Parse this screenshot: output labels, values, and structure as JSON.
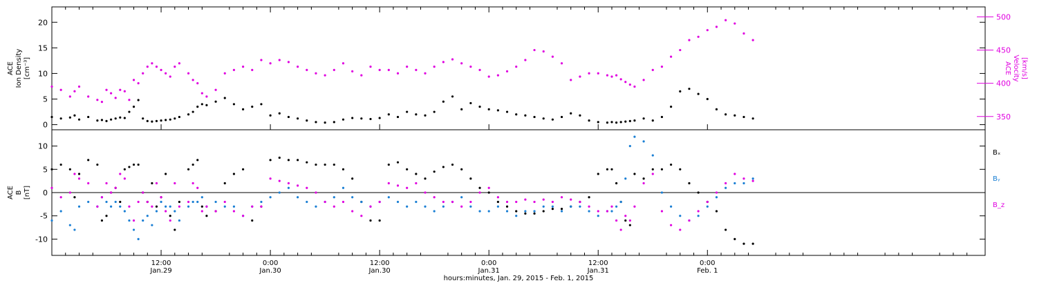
{
  "chart_data": [
    {
      "type": "scatter",
      "ylabel_lines": [
        "ACE",
        "Ion Density",
        "[cm⁻³]"
      ],
      "y2label_lines": [
        "ACE",
        "Velocity",
        "[km/s]"
      ],
      "ylim": [
        -1,
        23
      ],
      "y_ticks": [
        0,
        5,
        10,
        15,
        20
      ],
      "y2lim": [
        330,
        515
      ],
      "y2_ticks": [
        350,
        400,
        450,
        500
      ],
      "series": [
        {
          "key": "density",
          "axis": "left",
          "color": "#000000",
          "x": [
            0,
            2,
            4,
            5,
            6,
            8,
            10,
            11,
            12,
            13,
            14,
            15,
            16,
            17,
            18,
            19,
            20,
            21,
            22,
            23,
            24,
            25,
            26,
            27,
            28,
            30,
            31,
            32,
            33,
            34,
            36,
            38,
            40,
            42,
            44,
            46,
            48,
            50,
            52,
            54,
            56,
            58,
            60,
            62,
            64,
            66,
            68,
            70,
            72,
            74,
            76,
            78,
            80,
            82,
            84,
            86,
            88,
            90,
            92,
            94,
            96,
            98,
            100,
            102,
            104,
            106,
            108,
            110,
            112,
            114,
            116,
            118,
            120,
            122,
            123,
            124,
            125,
            126,
            127,
            128,
            130,
            132,
            134,
            136,
            138,
            140,
            142,
            144,
            146,
            148,
            150,
            152,
            154
          ],
          "y": [
            1.5,
            1.2,
            1.4,
            1.8,
            1,
            1.5,
            0.8,
            0.9,
            0.7,
            1,
            1.2,
            1.4,
            1.3,
            2.5,
            3.5,
            4.8,
            1.2,
            0.7,
            0.6,
            0.7,
            0.8,
            0.9,
            1,
            1.2,
            1.5,
            2,
            2.5,
            3.5,
            4,
            3.8,
            4.5,
            5.2,
            4,
            3,
            3.5,
            4,
            1.8,
            2.2,
            1.5,
            1.2,
            0.8,
            0.5,
            0.4,
            0.5,
            1,
            1.3,
            1.2,
            1.1,
            1.3,
            2,
            1.5,
            2.5,
            2,
            1.8,
            2.5,
            4.5,
            5.5,
            3,
            4.2,
            3.5,
            3,
            2.8,
            2.5,
            2,
            1.8,
            1.5,
            1.2,
            1,
            1.5,
            2.2,
            1.8,
            0.8,
            0.5,
            0.4,
            0.5,
            0.4,
            0.5,
            0.6,
            0.7,
            0.8,
            1.2,
            0.8,
            1.5,
            3.5,
            6.5,
            7,
            6,
            5,
            3,
            2,
            1.8,
            1.5,
            1.2
          ]
        },
        {
          "key": "velocity",
          "axis": "right",
          "color": "#e000e0",
          "x": [
            0,
            2,
            4,
            5,
            6,
            8,
            10,
            11,
            12,
            13,
            14,
            15,
            16,
            17,
            18,
            19,
            20,
            21,
            22,
            23,
            24,
            25,
            26,
            27,
            28,
            30,
            31,
            32,
            33,
            34,
            36,
            38,
            40,
            42,
            44,
            46,
            48,
            50,
            52,
            54,
            56,
            58,
            60,
            62,
            64,
            66,
            68,
            70,
            72,
            74,
            76,
            78,
            80,
            82,
            84,
            86,
            88,
            90,
            92,
            94,
            96,
            98,
            100,
            102,
            104,
            106,
            108,
            110,
            112,
            114,
            116,
            118,
            120,
            122,
            123,
            124,
            125,
            126,
            127,
            128,
            130,
            132,
            134,
            136,
            138,
            140,
            142,
            144,
            146,
            148,
            150,
            152,
            154
          ],
          "y": [
            395,
            390,
            380,
            388,
            395,
            380,
            375,
            372,
            390,
            385,
            378,
            390,
            388,
            375,
            405,
            400,
            415,
            425,
            430,
            425,
            420,
            415,
            410,
            425,
            430,
            415,
            405,
            400,
            385,
            380,
            390,
            415,
            420,
            425,
            420,
            435,
            430,
            435,
            432,
            425,
            420,
            415,
            412,
            420,
            430,
            418,
            412,
            425,
            420,
            420,
            415,
            425,
            420,
            415,
            425,
            432,
            436,
            430,
            425,
            420,
            410,
            412,
            418,
            425,
            435,
            450,
            448,
            440,
            430,
            405,
            410,
            415,
            415,
            412,
            410,
            412,
            406,
            402,
            398,
            395,
            405,
            420,
            425,
            440,
            450,
            465,
            470,
            480,
            485,
            495,
            490,
            475,
            465
          ]
        }
      ]
    },
    {
      "type": "scatter",
      "ylabel_lines": [
        "ACE",
        "B",
        "[nT]"
      ],
      "ylim": [
        -13.5,
        13.5
      ],
      "y_ticks": [
        -10,
        -5,
        0,
        5,
        10
      ],
      "zero_line": true,
      "legend": [
        "Bₓ",
        "Bᵧ",
        "B_z"
      ],
      "legend_position": "right",
      "series": [
        {
          "key": "bx",
          "label": "Bₓ",
          "color": "#000000",
          "x": [
            0,
            2,
            4,
            5,
            6,
            8,
            10,
            11,
            12,
            13,
            14,
            15,
            16,
            17,
            18,
            19,
            20,
            21,
            22,
            23,
            24,
            25,
            26,
            27,
            28,
            30,
            31,
            32,
            33,
            34,
            36,
            38,
            40,
            42,
            44,
            46,
            48,
            50,
            52,
            54,
            56,
            58,
            60,
            62,
            64,
            66,
            68,
            70,
            72,
            74,
            76,
            78,
            80,
            82,
            84,
            86,
            88,
            90,
            92,
            94,
            96,
            98,
            100,
            102,
            104,
            106,
            108,
            110,
            112,
            114,
            116,
            118,
            120,
            122,
            123,
            124,
            125,
            126,
            127,
            128,
            130,
            132,
            134,
            136,
            138,
            140,
            142,
            144,
            146,
            148,
            150,
            152,
            154
          ],
          "y": [
            5,
            6,
            5,
            -1,
            4,
            7,
            6,
            -6,
            -5,
            0,
            1,
            -2,
            5,
            5.5,
            6,
            6,
            0,
            -2,
            2,
            -3,
            -1,
            4,
            -5,
            -8,
            -2,
            5,
            6,
            7,
            -3,
            -5,
            -4,
            2,
            4,
            5,
            -6,
            -3,
            7,
            7.5,
            7,
            7,
            6.5,
            6,
            6,
            6,
            5,
            3,
            -2,
            -6,
            -6,
            6,
            6.5,
            5,
            4,
            3,
            4.5,
            5.5,
            6,
            5,
            3,
            1,
            0,
            -2,
            -3,
            -4,
            -4.5,
            -4.5,
            -4,
            -3.5,
            -3.5,
            -3,
            -2,
            -1,
            4,
            5,
            5,
            2,
            -2,
            -6,
            -7,
            4,
            3,
            5,
            5,
            6,
            5,
            2,
            0,
            -2,
            -4,
            -8,
            -10,
            -11,
            -11
          ]
        },
        {
          "key": "by",
          "label": "Bᵧ",
          "color": "#1a7fd4",
          "x": [
            0,
            2,
            4,
            5,
            6,
            8,
            10,
            11,
            12,
            13,
            14,
            15,
            16,
            17,
            18,
            19,
            20,
            21,
            22,
            23,
            24,
            25,
            26,
            27,
            28,
            30,
            31,
            32,
            33,
            34,
            36,
            38,
            40,
            42,
            44,
            46,
            48,
            50,
            52,
            54,
            56,
            58,
            60,
            62,
            64,
            66,
            68,
            70,
            72,
            74,
            76,
            78,
            80,
            82,
            84,
            86,
            88,
            90,
            92,
            94,
            96,
            98,
            100,
            102,
            104,
            106,
            108,
            110,
            112,
            114,
            116,
            118,
            120,
            122,
            123,
            124,
            125,
            126,
            127,
            128,
            130,
            132,
            134,
            136,
            138,
            140,
            142,
            144,
            146,
            148,
            150,
            152,
            154
          ],
          "y": [
            -6,
            -4,
            -7,
            -8,
            -3,
            -2,
            -3,
            -1,
            -2,
            -3,
            -2,
            -3,
            -4,
            -6,
            -8,
            -10,
            -6,
            -5,
            -7,
            -4,
            -2,
            -3,
            -3,
            -4,
            -6,
            -3,
            -2,
            -2,
            -1,
            -3,
            -2,
            -3,
            -3,
            -5,
            -3,
            -2,
            -1,
            0,
            1,
            -1,
            -2,
            -3,
            -2,
            -1,
            1,
            -1,
            -2,
            -3,
            -2,
            -1,
            -2,
            -3,
            -2,
            -3,
            -4,
            -3,
            -2,
            -1,
            -3,
            -4,
            -4,
            -3,
            -4,
            -5,
            -4,
            -4,
            -3,
            -3,
            -4,
            -3,
            -3,
            -4,
            -5,
            -4,
            -4,
            -3,
            -2,
            3,
            10,
            12,
            11,
            8,
            0,
            -3,
            -5,
            -6,
            -5,
            -3,
            -1,
            1,
            2,
            2,
            3
          ]
        },
        {
          "key": "bz",
          "label": "B_z",
          "color": "#e000e0",
          "x": [
            0,
            2,
            4,
            5,
            6,
            8,
            10,
            11,
            12,
            13,
            14,
            15,
            16,
            17,
            18,
            19,
            20,
            21,
            22,
            23,
            24,
            25,
            26,
            27,
            28,
            30,
            31,
            32,
            33,
            34,
            36,
            38,
            40,
            42,
            44,
            46,
            48,
            50,
            52,
            54,
            56,
            58,
            60,
            62,
            64,
            66,
            68,
            70,
            72,
            74,
            76,
            78,
            80,
            82,
            84,
            86,
            88,
            90,
            92,
            94,
            96,
            98,
            100,
            102,
            104,
            106,
            108,
            110,
            112,
            114,
            116,
            118,
            120,
            122,
            123,
            124,
            125,
            126,
            127,
            128,
            130,
            132,
            134,
            136,
            138,
            140,
            142,
            144,
            146,
            148,
            150,
            152,
            154
          ],
          "y": [
            1,
            -1,
            0,
            4,
            3,
            2,
            -3,
            -1,
            2,
            0,
            1,
            4,
            3,
            -3,
            -6,
            -2,
            0,
            -2,
            -3,
            2,
            -1,
            -4,
            -6,
            2,
            -3,
            -2,
            2,
            1,
            -4,
            -3,
            -4,
            -2,
            -4,
            -5,
            -3,
            -3,
            3,
            2.5,
            2,
            1.5,
            1,
            0,
            -2,
            -3,
            -2,
            -4,
            -5,
            -3,
            -2,
            2,
            1.5,
            1,
            2,
            0,
            -1,
            -2,
            -2,
            -3,
            -2,
            0,
            1,
            -1,
            -2,
            -2,
            -1.5,
            -2,
            -1.5,
            -2,
            -1,
            -1.5,
            -2,
            -3,
            -4,
            -4,
            -3,
            -6,
            -8,
            -5,
            -6,
            -3,
            2,
            4,
            -4,
            -7,
            -8,
            -6,
            -4,
            -2,
            0,
            2,
            4,
            3,
            2.5
          ]
        }
      ]
    }
  ],
  "shared_x": {
    "label": "hours:minutes, Jan. 29, 2015 - Feb.  1, 2015",
    "xlim": [
      0,
      205
    ],
    "ticks": [
      {
        "x": 24,
        "time": "12:00",
        "date": "Jan.29"
      },
      {
        "x": 48,
        "time": "0:00",
        "date": "Jan.30"
      },
      {
        "x": 72,
        "time": "12:00",
        "date": "Jan.30"
      },
      {
        "x": 96,
        "time": "0:00",
        "date": "Jan.31"
      },
      {
        "x": 120,
        "time": "12:00",
        "date": "Jan.31"
      },
      {
        "x": 144,
        "time": "0:00",
        "date": "Feb. 1"
      }
    ]
  }
}
